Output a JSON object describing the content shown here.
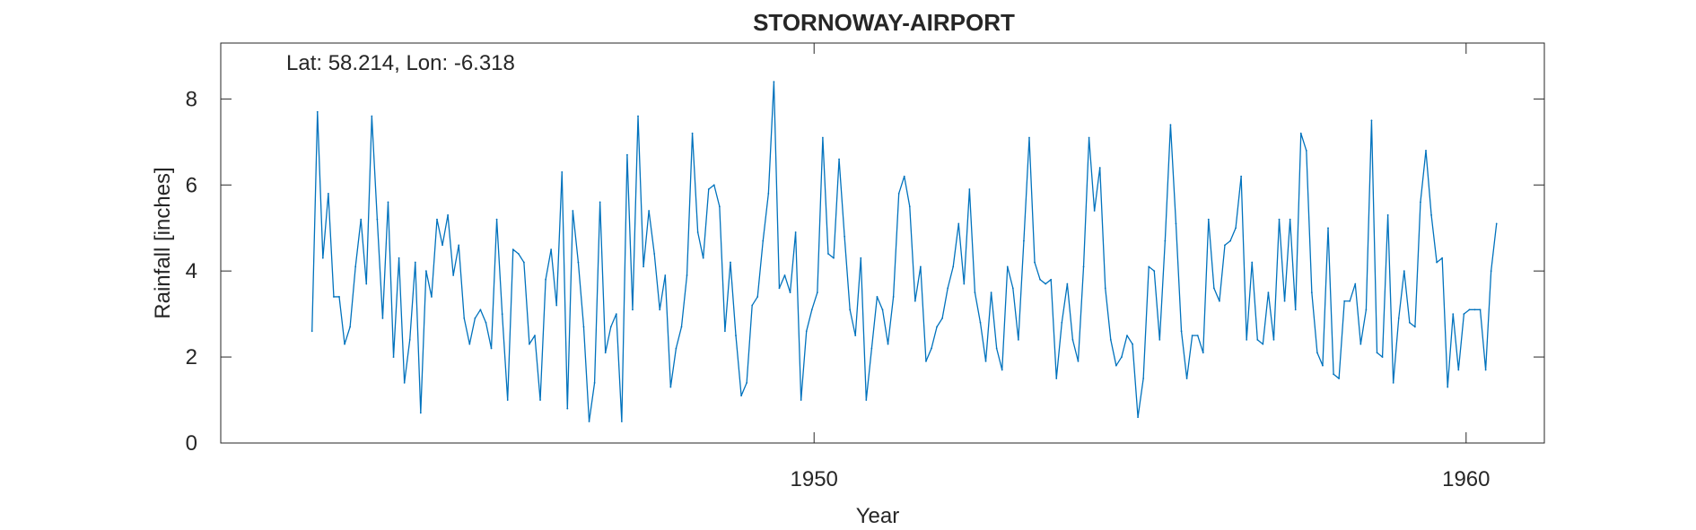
{
  "chart_data": {
    "type": "line",
    "title": "STORNOWAY-AIRPORT",
    "annotation": "Lat: 58.214, Lon: -6.318",
    "xlabel": "Year",
    "ylabel": "Rainfall [inches]",
    "xlim": [
      1940.9,
      1961.2
    ],
    "ylim": [
      0,
      9.3
    ],
    "xticks": [
      1950,
      1960
    ],
    "yticks": [
      0,
      2,
      4,
      6,
      8
    ],
    "grid": false,
    "line_color": "#0072BD",
    "series": [
      {
        "x_start": 1942.3,
        "x_step": 0.0833333,
        "values": [
          2.6,
          7.7,
          4.3,
          5.8,
          3.4,
          3.4,
          2.3,
          2.7,
          4.1,
          5.2,
          3.7,
          7.6,
          5.2,
          2.9,
          5.6,
          2.0,
          4.3,
          1.4,
          2.4,
          4.2,
          0.7,
          4.0,
          3.4,
          5.2,
          4.6,
          5.3,
          3.9,
          4.6,
          2.9,
          2.3,
          2.9,
          3.1,
          2.8,
          2.2,
          5.2,
          3.0,
          1.0,
          4.5,
          4.4,
          4.2,
          2.3,
          2.5,
          1.0,
          3.8,
          4.5,
          3.2,
          6.3,
          0.8,
          5.4,
          4.2,
          2.7,
          0.5,
          1.4,
          5.6,
          2.1,
          2.7,
          3.0,
          0.5,
          6.7,
          3.1,
          7.6,
          4.1,
          5.4,
          4.4,
          3.1,
          3.9,
          1.3,
          2.2,
          2.7,
          3.9,
          7.2,
          4.9,
          4.3,
          5.9,
          6.0,
          5.5,
          2.6,
          4.2,
          2.5,
          1.1,
          1.4,
          3.2,
          3.4,
          4.7,
          5.8,
          8.4,
          3.6,
          3.9,
          3.5,
          4.9,
          1.0,
          2.6,
          3.1,
          3.5,
          7.1,
          4.4,
          4.3,
          6.6,
          4.8,
          3.1,
          2.5,
          4.3,
          1.0,
          2.2,
          3.4,
          3.1,
          2.3,
          3.4,
          5.8,
          6.2,
          5.5,
          3.3,
          4.1,
          1.9,
          2.2,
          2.7,
          2.9,
          3.6,
          4.1,
          5.1,
          3.7,
          5.9,
          3.5,
          2.8,
          1.9,
          3.5,
          2.2,
          1.7,
          4.1,
          3.6,
          2.4,
          4.7,
          7.1,
          4.2,
          3.8,
          3.7,
          3.8,
          1.5,
          2.8,
          3.7,
          2.4,
          1.9,
          4.1,
          7.1,
          5.4,
          6.4,
          3.6,
          2.4,
          1.8,
          2.0,
          2.5,
          2.3,
          0.6,
          1.5,
          4.1,
          4.0,
          2.4,
          4.7,
          7.4,
          5.1,
          2.6,
          1.5,
          2.5,
          2.5,
          2.1,
          5.2,
          3.6,
          3.3,
          4.6,
          4.7,
          5.0,
          6.2,
          2.4,
          4.2,
          2.4,
          2.3,
          3.5,
          2.4,
          5.2,
          3.3,
          5.2,
          3.1,
          7.2,
          6.8,
          3.5,
          2.1,
          1.8,
          5.0,
          1.6,
          1.5,
          3.3,
          3.3,
          3.7,
          2.3,
          3.1,
          7.5,
          2.1,
          2.0,
          5.3,
          1.4,
          2.9,
          4.0,
          2.8,
          2.7,
          5.6,
          6.8,
          5.3,
          4.2,
          4.3,
          1.3,
          3.0,
          1.7,
          3.0,
          3.1,
          3.1,
          3.1,
          1.7,
          4.0,
          5.1
        ]
      }
    ]
  }
}
